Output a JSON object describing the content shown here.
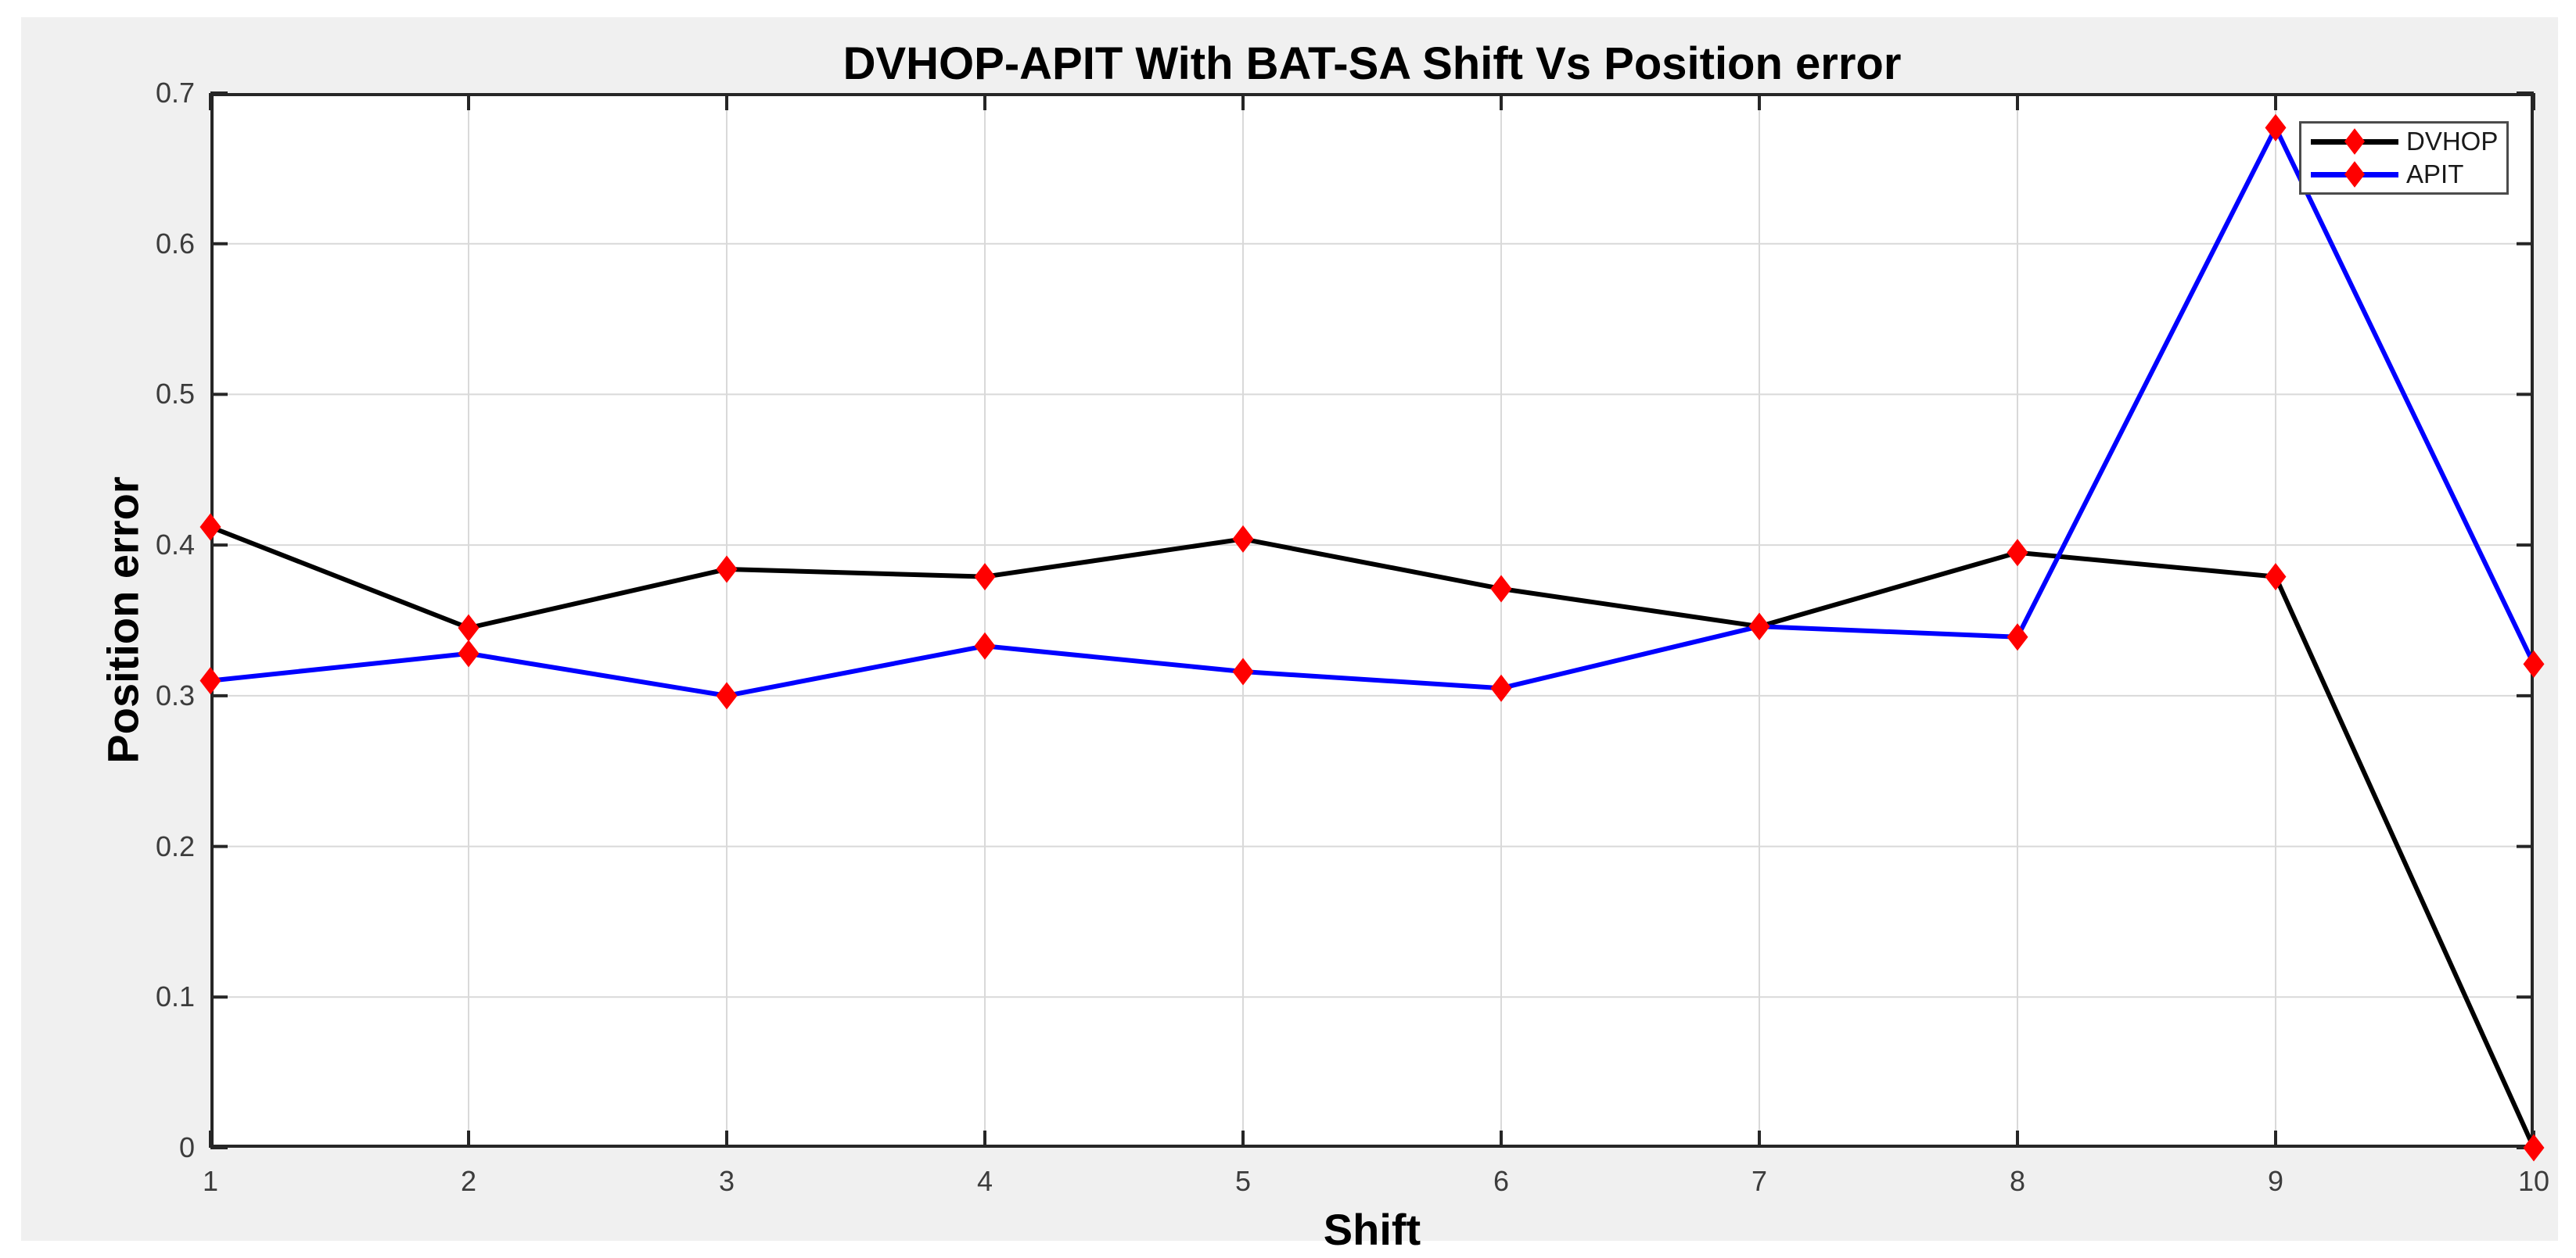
{
  "figure": {
    "kind": "matlab-style-figure"
  },
  "chart_data": {
    "type": "line",
    "title": "DVHOP-APIT With BAT-SA Shift Vs Position error",
    "xlabel": "Shift",
    "ylabel": "Position error",
    "x": [
      1,
      2,
      3,
      4,
      5,
      6,
      7,
      8,
      9,
      10
    ],
    "xlim": [
      1,
      10
    ],
    "ylim": [
      0,
      0.7
    ],
    "x_tick_labels": [
      "1",
      "2",
      "3",
      "4",
      "5",
      "6",
      "7",
      "8",
      "9",
      "10"
    ],
    "y_tick_labels": [
      "0",
      "0.1",
      "0.2",
      "0.3",
      "0.4",
      "0.5",
      "0.6",
      "0.7"
    ],
    "grid": true,
    "legend_position": "top-right",
    "series": [
      {
        "name": "DVHOP",
        "color": "#000000",
        "marker": "diamond",
        "marker_color": "#ff0000",
        "values": [
          0.412,
          0.345,
          0.384,
          0.379,
          0.404,
          0.371,
          0.346,
          0.395,
          0.379,
          0.0
        ]
      },
      {
        "name": "APIT",
        "color": "#0000ff",
        "marker": "diamond",
        "marker_color": "#ff0000",
        "values": [
          0.31,
          0.328,
          0.3,
          0.333,
          0.316,
          0.305,
          0.346,
          0.339,
          0.677,
          0.321
        ]
      }
    ],
    "colors": {
      "figure_background": "#f0f0f0",
      "plot_background": "#ffffff",
      "axis_frame": "#262626",
      "grid_line": "#d9d9d9",
      "tick_label": "#3c3c3c",
      "title_text": "#000000",
      "legend_border": "#4b4b4b",
      "legend_background": "#ffffff",
      "marker_red": "#ff0000",
      "series_black": "#000000",
      "series_blue": "#0000ff"
    }
  }
}
